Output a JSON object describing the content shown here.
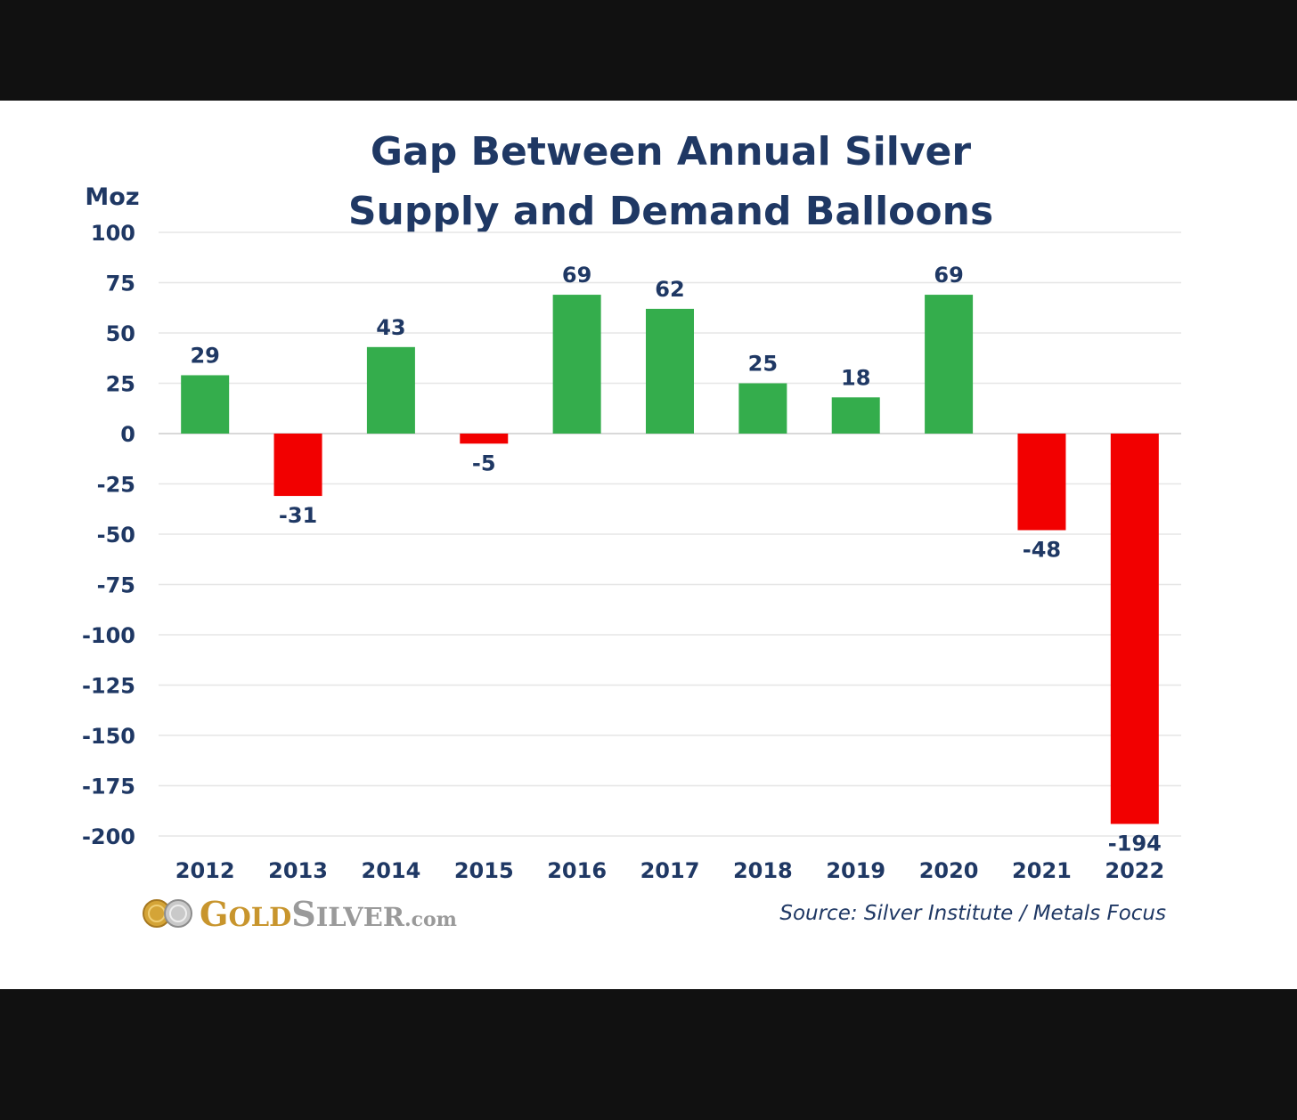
{
  "chart_data": {
    "type": "bar",
    "title": "Gap Between Annual Silver Supply and Demand Balloons",
    "title_lines": [
      "Gap Between Annual Silver",
      "Supply and Demand Balloons"
    ],
    "ylabel": "Moz",
    "xlabel": "",
    "categories": [
      "2012",
      "2013",
      "2014",
      "2015",
      "2016",
      "2017",
      "2018",
      "2019",
      "2020",
      "2021",
      "2022"
    ],
    "values": [
      29,
      -31,
      43,
      -5,
      69,
      62,
      25,
      18,
      69,
      -48,
      -194
    ],
    "value_labels": [
      "29",
      "-31",
      "43",
      "-5",
      "69",
      "62",
      "25",
      "18",
      "69",
      "-48",
      "-194"
    ],
    "ylim": [
      -200,
      100
    ],
    "yticks": [
      100,
      75,
      50,
      25,
      0,
      -25,
      -50,
      -75,
      -100,
      -125,
      -150,
      -175,
      -200
    ],
    "grid": true,
    "legend": "none",
    "colors": {
      "positive": "#34ad4c",
      "negative": "#f20000"
    },
    "source": "Source: Silver Institute / Metals Focus"
  },
  "logo": {
    "gold_initial": "G",
    "gold_rest": "OLD",
    "silver_initial": "S",
    "silver_rest": "ILVER",
    "suffix": ".com",
    "icon": "coins-icon"
  },
  "colors": {
    "title": "#1f3864",
    "frame": "#111111",
    "gold": "#c8952d",
    "silver": "#9a9a9a"
  }
}
